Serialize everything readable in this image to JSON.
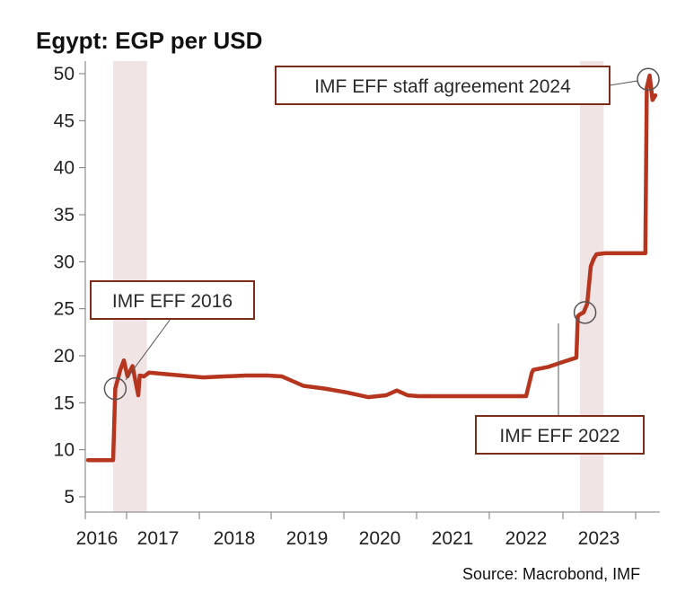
{
  "chart_data": {
    "type": "line",
    "title": "Egypt: EGP per USD",
    "source": "Source: Macrobond, IMF",
    "xlabel": "",
    "ylabel": "",
    "ylim": [
      5,
      50
    ],
    "yticks": [
      5,
      10,
      15,
      20,
      25,
      30,
      35,
      40,
      45,
      50
    ],
    "xlim": [
      2016.0,
      2023.95
    ],
    "xtick_labels": [
      "2016",
      "2017",
      "2018",
      "2019",
      "2020",
      "2021",
      "2022",
      "2023"
    ],
    "grid": false,
    "legend": "none",
    "line_color": "#b5351f",
    "shade_color": "#f1e4e4",
    "annotation_color": "#7b2d1a",
    "shaded_periods": [
      {
        "start": 2016.35,
        "end": 2016.82
      },
      {
        "start": 2022.85,
        "end": 2023.18
      }
    ],
    "series": [
      {
        "x": [
          2016.0,
          2016.35,
          2016.38,
          2016.45,
          2016.5,
          2016.55,
          2016.62,
          2016.7,
          2016.72,
          2016.78,
          2016.85,
          2017.0,
          2017.3,
          2017.6,
          2017.9,
          2018.2,
          2018.5,
          2018.7,
          2019.0,
          2019.3,
          2019.6,
          2019.9,
          2020.15,
          2020.3,
          2020.45,
          2020.6,
          2020.9,
          2021.3,
          2021.7,
          2022.1,
          2022.18,
          2022.2,
          2022.4,
          2022.6,
          2022.8,
          2022.82,
          2022.85,
          2022.9,
          2022.95,
          2023.0,
          2023.04,
          2023.08,
          2023.2,
          2023.5,
          2023.76,
          2023.78,
          2023.82,
          2023.86,
          2023.9
        ],
        "y": [
          8.9,
          8.9,
          16.5,
          18.5,
          19.5,
          17.8,
          18.9,
          15.8,
          17.9,
          17.8,
          18.2,
          18.1,
          17.9,
          17.7,
          17.8,
          17.9,
          17.9,
          17.8,
          16.8,
          16.5,
          16.1,
          15.6,
          15.8,
          16.3,
          15.8,
          15.7,
          15.7,
          15.7,
          15.7,
          15.7,
          18.2,
          18.5,
          18.8,
          19.3,
          19.8,
          24.2,
          24.4,
          24.6,
          25.5,
          29.5,
          30.3,
          30.8,
          30.9,
          30.9,
          30.9,
          48.5,
          49.8,
          47.2,
          47.7
        ]
      }
    ],
    "annotations": [
      {
        "label": "IMF EFF 2016",
        "x": 2016.38,
        "y": 16.5
      },
      {
        "label": "IMF EFF 2022",
        "x": 2022.92,
        "y": 24.6
      },
      {
        "label": "IMF EFF staff agreement 2024",
        "x": 2023.8,
        "y": 49.4
      }
    ]
  }
}
